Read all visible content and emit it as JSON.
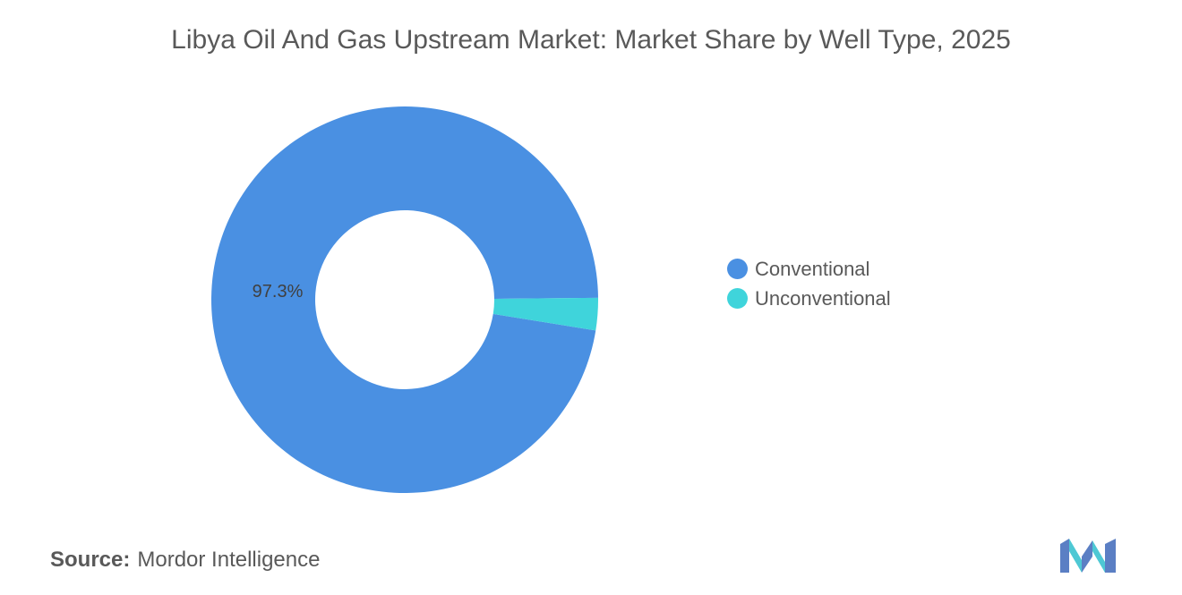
{
  "chart_data": {
    "type": "pie",
    "title": "Libya Oil And Gas Upstream Market: Market Share by Well Type, 2025",
    "categories": [
      "Conventional",
      "Unconventional"
    ],
    "values": [
      97.3,
      2.7
    ],
    "labels": [
      "97.3%",
      ""
    ],
    "colors": [
      "#4A90E2",
      "#3FD4DB"
    ],
    "legend_position": "right",
    "style": "donut"
  },
  "source": {
    "label": "Source:",
    "value": "Mordor Intelligence"
  },
  "logo": {
    "icon": "mordor-intelligence-logo",
    "colors": [
      "#5B7FC4",
      "#4EC8D4"
    ]
  }
}
